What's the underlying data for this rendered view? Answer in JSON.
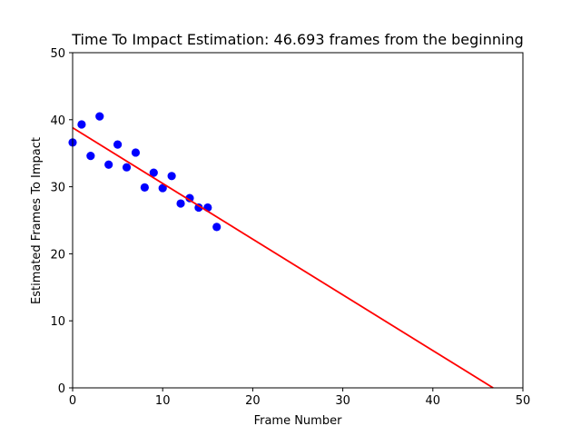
{
  "chart_data": {
    "type": "scatter",
    "title": "Time To Impact Estimation: 46.693 frames from the beginning",
    "xlabel": "Frame Number",
    "ylabel": "Estimated Frames To Impact",
    "xlim": [
      0,
      50
    ],
    "ylim": [
      0,
      50
    ],
    "xticks": [
      0,
      10,
      20,
      30,
      40,
      50
    ],
    "yticks": [
      0,
      10,
      20,
      30,
      40,
      50
    ],
    "grid": false,
    "series": [
      {
        "kind": "scatter",
        "color": "#0000ff",
        "x": [
          0,
          1,
          2,
          3,
          4,
          5,
          6,
          7,
          8,
          9,
          10,
          11,
          12,
          13,
          14,
          15,
          16
        ],
        "y": [
          36.6,
          39.3,
          34.6,
          40.5,
          33.3,
          36.3,
          32.9,
          35.1,
          29.9,
          32.1,
          29.8,
          31.6,
          27.5,
          28.3,
          26.9,
          26.9,
          24.0
        ]
      },
      {
        "kind": "line",
        "color": "#ff0000",
        "x": [
          0,
          46.693
        ],
        "y": [
          38.8,
          0
        ]
      }
    ]
  }
}
